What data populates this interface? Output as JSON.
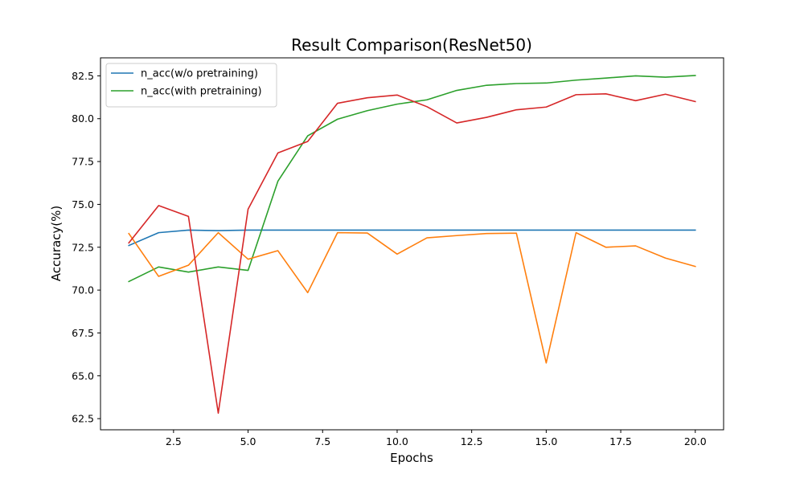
{
  "chart_data": {
    "type": "line",
    "title": "Result Comparison(ResNet50)",
    "xlabel": "Epochs",
    "ylabel": "Accuracy(%)",
    "xlim": [
      0.05,
      20.95
    ],
    "ylim": [
      61.85,
      83.55
    ],
    "xticks": [
      2.5,
      5.0,
      7.5,
      10.0,
      12.5,
      15.0,
      17.5,
      20.0
    ],
    "xtick_labels": [
      "2.5",
      "5.0",
      "7.5",
      "10.0",
      "12.5",
      "15.0",
      "17.5",
      "20.0"
    ],
    "yticks": [
      62.5,
      65.0,
      67.5,
      70.0,
      72.5,
      75.0,
      77.5,
      80.0,
      82.5
    ],
    "ytick_labels": [
      "62.5",
      "65.0",
      "67.5",
      "70.0",
      "72.5",
      "75.0",
      "77.5",
      "80.0",
      "82.5"
    ],
    "grid": false,
    "legend_position": "top-left",
    "x": [
      1,
      2,
      3,
      4,
      5,
      6,
      7,
      8,
      9,
      10,
      11,
      12,
      13,
      14,
      15,
      16,
      17,
      18,
      19,
      20
    ],
    "series": [
      {
        "name": "n_acc(w/o pretraining)",
        "color": "#1f77b4",
        "in_legend": true,
        "values": [
          72.6,
          73.35,
          73.5,
          73.47,
          73.5,
          73.5,
          73.5,
          73.5,
          73.5,
          73.5,
          73.5,
          73.5,
          73.5,
          73.5,
          73.5,
          73.5,
          73.5,
          73.5,
          73.5,
          73.5
        ]
      },
      {
        "name": "n_acc(with pretraining)",
        "color": "#2ca02c",
        "in_legend": true,
        "values": [
          70.5,
          71.35,
          71.05,
          71.35,
          71.15,
          76.35,
          79.0,
          79.97,
          80.47,
          80.85,
          81.1,
          81.65,
          81.95,
          82.05,
          82.08,
          82.25,
          82.37,
          82.5,
          82.42,
          82.52
        ]
      },
      {
        "name": "",
        "color": "#ff7f0e",
        "in_legend": false,
        "values": [
          73.3,
          70.8,
          71.45,
          73.35,
          71.8,
          72.3,
          69.85,
          73.35,
          73.33,
          72.1,
          73.05,
          73.18,
          73.3,
          73.32,
          65.75,
          73.35,
          72.5,
          72.58,
          71.87,
          71.38
        ]
      },
      {
        "name": "",
        "color": "#d62728",
        "in_legend": false,
        "values": [
          72.75,
          74.93,
          74.3,
          62.82,
          74.72,
          78.0,
          78.67,
          80.9,
          81.22,
          81.38,
          80.7,
          79.75,
          80.08,
          80.52,
          80.68,
          81.4,
          81.45,
          81.05,
          81.43,
          81.0
        ]
      }
    ]
  }
}
